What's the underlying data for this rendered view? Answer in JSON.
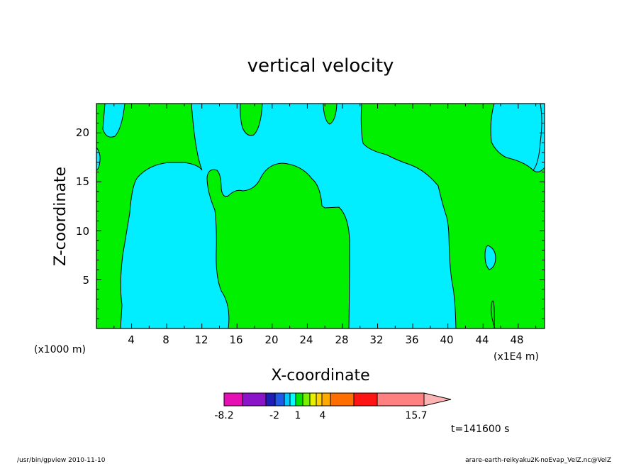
{
  "chart_data": {
    "type": "heatmap",
    "title": "vertical velocity",
    "xlabel": "X-coordinate",
    "ylabel": "Z-coordinate",
    "x_unit_left": "(x1000 m)",
    "x_unit_right": "(x1E4 m)",
    "xlim": [
      0,
      51
    ],
    "ylim": [
      0,
      23
    ],
    "x_ticks": [
      "4",
      "8",
      "12",
      "16",
      "20",
      "24",
      "28",
      "32",
      "36",
      "40",
      "44",
      "48"
    ],
    "y_ticks": [
      "5",
      "10",
      "15",
      "20"
    ],
    "regions_note": "green = 0 to 1, cyan = -1 to 0",
    "colorbar": {
      "colors": [
        "#e60fb4",
        "#8c14c8",
        "#1e1eb4",
        "#1e5ae6",
        "#00c8ff",
        "#00ffff",
        "#00e600",
        "#78f000",
        "#e6f000",
        "#ffd200",
        "#ffaa00",
        "#ff6e00",
        "#ff1414",
        "#ff8080"
      ],
      "labels": [
        "-8.2",
        "-2",
        "1",
        "4",
        "15.7"
      ],
      "label_positions": [
        0,
        3,
        5,
        7,
        13
      ]
    },
    "time_label": "t=141600 s"
  },
  "footer": {
    "left": "/usr/bin/gpview   2010-11-10",
    "right": "arare-earth-reikyaku2K-noEvap_VelZ.nc@VelZ"
  }
}
